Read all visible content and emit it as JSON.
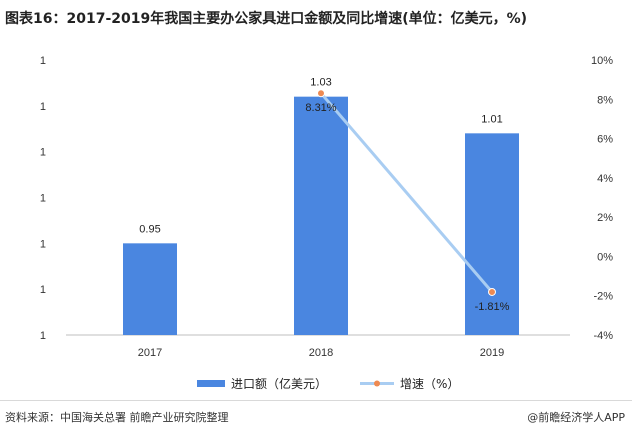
{
  "title": "图表16：2017-2019年我国主要办公家具进口金额及同比增速(单位：亿美元，%)",
  "source": "资料来源：中国海关总署 前瞻产业研究院整理",
  "brand": "@前瞻经济学人APP",
  "colors": {
    "bar": "#4a86e0",
    "line": "#a9cdf2",
    "marker": "#ee8a52",
    "axis": "#bfbfbf"
  },
  "chart_data": {
    "type": "bar+line",
    "categories": [
      "2017",
      "2018",
      "2019"
    ],
    "series": [
      {
        "name": "进口额（亿美元）",
        "type": "bar",
        "axis": "left",
        "values": [
          0.95,
          1.03,
          1.01
        ],
        "labels": [
          "0.95",
          "1.03",
          "1.01"
        ]
      },
      {
        "name": "增速（%）",
        "type": "line",
        "axis": "right",
        "values": [
          null,
          8.31,
          -1.81
        ],
        "labels": [
          "",
          "8.31%",
          "-1.81%"
        ]
      }
    ],
    "left_axis": {
      "ticks": [
        "1",
        "1",
        "1",
        "1",
        "1",
        "1",
        "1"
      ],
      "ylim": [
        0.9,
        1.05
      ]
    },
    "right_axis": {
      "ticks": [
        "10%",
        "8%",
        "6%",
        "4%",
        "2%",
        "0%",
        "-2%",
        "-4%"
      ],
      "ylim": [
        -4,
        10
      ]
    },
    "legend_position": "bottom",
    "grid": false
  }
}
